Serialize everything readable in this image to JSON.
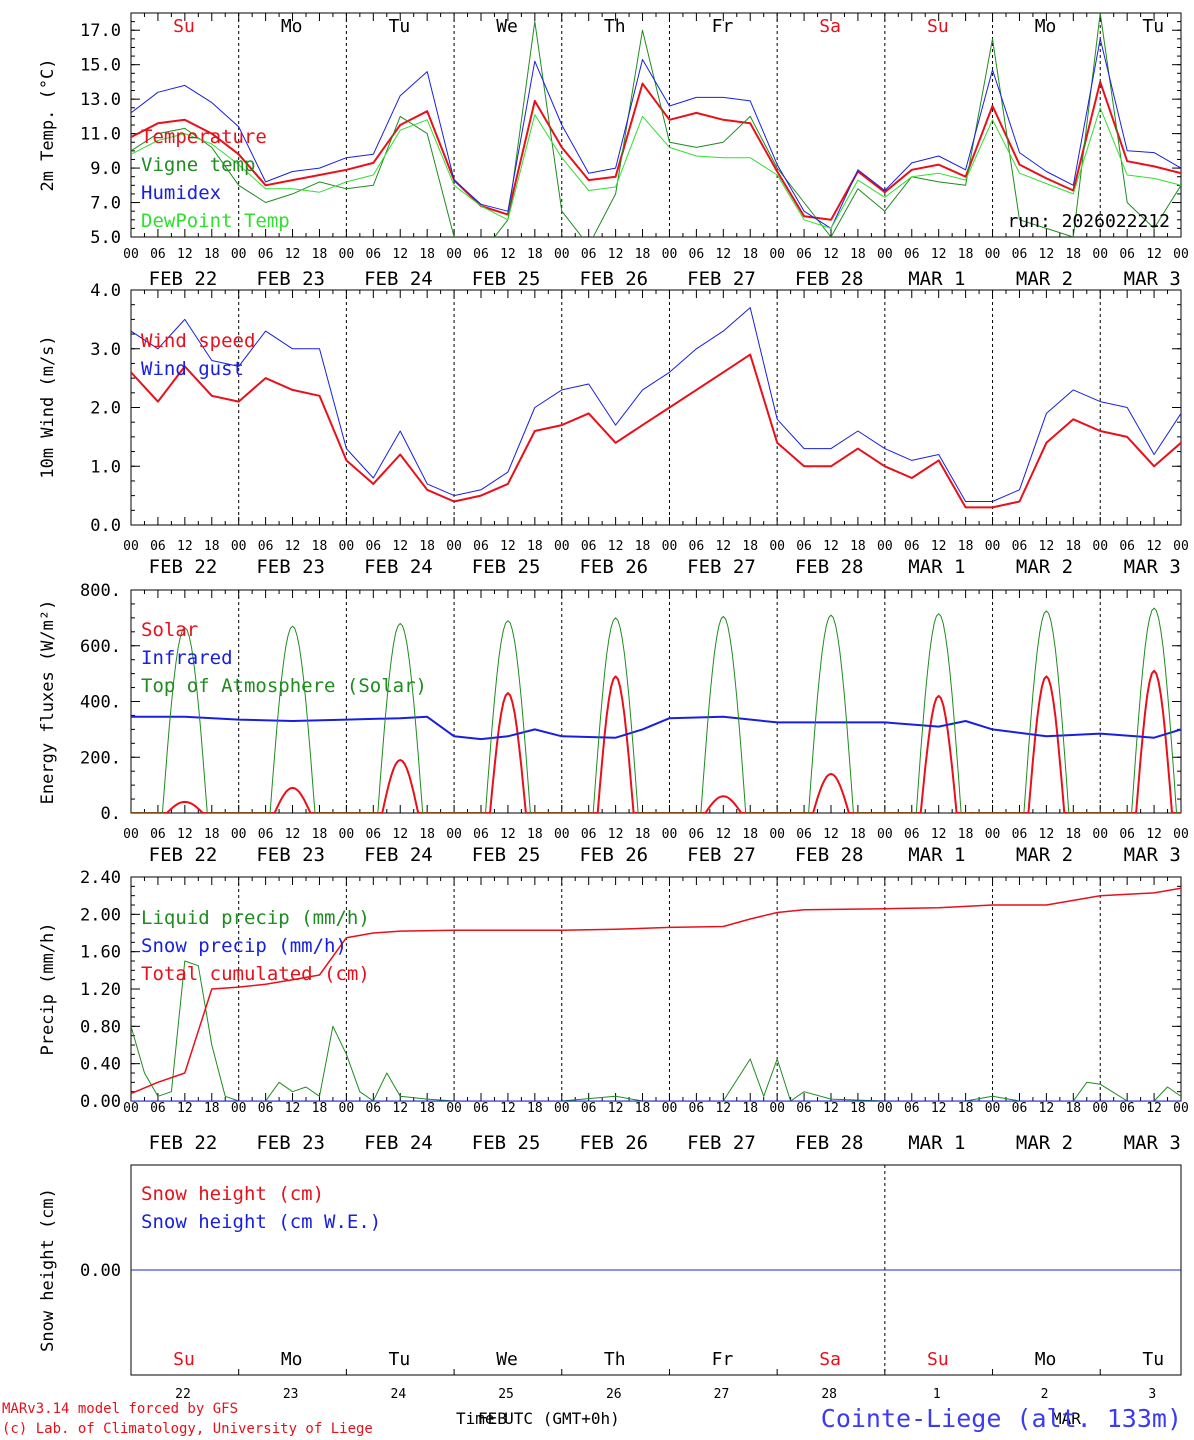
{
  "colors": {
    "red": "#e8101a",
    "green": "#1e8c1e",
    "blue": "#1820e0",
    "lightgreen": "#30e030",
    "black": "#000000"
  },
  "days": {
    "weekdays": [
      "Su",
      "Mo",
      "Tu",
      "We",
      "Th",
      "Fr",
      "Sa",
      "Su",
      "Mo",
      "Tu"
    ],
    "weekday_colors": [
      "red",
      "black",
      "black",
      "black",
      "black",
      "black",
      "red",
      "red",
      "black",
      "black"
    ],
    "date_labels": [
      "FEB 22",
      "FEB 23",
      "FEB 24",
      "FEB 25",
      "FEB 26",
      "FEB 27",
      "FEB 28",
      "MAR  1",
      "MAR  2",
      "MAR  3"
    ],
    "hour_ticks": [
      "00",
      "06",
      "12",
      "18"
    ],
    "last_hour": "00",
    "day_numbers": [
      "22",
      "23",
      "24",
      "25",
      "26",
      "27",
      "28",
      "1",
      "2",
      "3"
    ]
  },
  "footer": {
    "model": "MARv3.14 model forced by GFS",
    "lab": "(c) Lab. of Climatology, University of Liege",
    "time_label": "Time UTC (GMT+0h)",
    "month_feb": "FEB",
    "month_mar": "MAR",
    "station": "Cointe-Liege (alt. 133m)"
  },
  "chart_data": [
    {
      "type": "line",
      "title": "",
      "ylabel": "2m Temp. (°C)",
      "ylim": [
        5.0,
        18.0
      ],
      "yticks": [
        "5.0",
        "7.0",
        "9.0",
        "11.0",
        "13.0",
        "15.0",
        "17.0"
      ],
      "x_unit": "hours since FEB 22 00 UTC",
      "annotation": "run: 2026022212",
      "series": [
        {
          "name": "Temperature",
          "color": "red",
          "width": 2,
          "x": [
            0,
            6,
            12,
            18,
            24,
            30,
            36,
            42,
            48,
            54,
            60,
            66,
            72,
            78,
            84,
            90,
            96,
            102,
            108,
            114,
            120,
            126,
            132,
            138,
            144,
            150,
            156,
            162,
            168,
            174,
            180,
            186,
            192,
            198,
            204,
            210,
            216,
            222,
            228,
            234
          ],
          "values": [
            10.8,
            11.6,
            11.8,
            11.0,
            9.8,
            8.0,
            8.3,
            8.6,
            8.9,
            9.3,
            11.5,
            12.3,
            8.3,
            6.8,
            6.3,
            12.9,
            10.2,
            8.3,
            8.5,
            13.9,
            11.8,
            12.2,
            11.8,
            11.6,
            8.8,
            6.2,
            6.0,
            8.8,
            7.6,
            8.9,
            9.2,
            8.5,
            12.6,
            9.2,
            8.4,
            7.7,
            14.0,
            9.4,
            9.1,
            8.7
          ]
        },
        {
          "name": "Vigne temp",
          "color": "green",
          "width": 1,
          "x": [
            0,
            6,
            12,
            18,
            24,
            30,
            36,
            42,
            48,
            54,
            60,
            66,
            72,
            78,
            84,
            90,
            96,
            102,
            108,
            114,
            120,
            126,
            132,
            138,
            144,
            150,
            156,
            162,
            168,
            174,
            180,
            186,
            192,
            198,
            204,
            210,
            216,
            222,
            228,
            234
          ],
          "values": [
            10.0,
            11.0,
            11.3,
            10.2,
            8.0,
            7.0,
            7.5,
            8.2,
            7.8,
            8.0,
            12.0,
            11.0,
            5.0,
            4.0,
            6.0,
            17.5,
            6.5,
            4.5,
            7.5,
            17.0,
            10.5,
            10.2,
            10.5,
            12.0,
            9.0,
            7.0,
            5.0,
            7.8,
            6.5,
            8.5,
            8.2,
            8.0,
            16.5,
            6.0,
            5.5,
            5.0,
            18.0,
            7.0,
            5.5,
            8.0
          ]
        },
        {
          "name": "Humidex",
          "color": "blue",
          "width": 1,
          "x": [
            0,
            6,
            12,
            18,
            24,
            30,
            36,
            42,
            48,
            54,
            60,
            66,
            72,
            78,
            84,
            90,
            96,
            102,
            108,
            114,
            120,
            126,
            132,
            138,
            144,
            150,
            156,
            162,
            168,
            174,
            180,
            186,
            192,
            198,
            204,
            210,
            216,
            222,
            228,
            234
          ],
          "values": [
            12.2,
            13.4,
            13.8,
            12.8,
            11.4,
            8.2,
            8.8,
            9.0,
            9.6,
            9.8,
            13.2,
            14.6,
            8.3,
            6.9,
            6.5,
            15.2,
            11.5,
            8.7,
            9.0,
            15.3,
            12.6,
            13.1,
            13.1,
            12.9,
            9.2,
            6.5,
            5.5,
            8.9,
            7.7,
            9.3,
            9.7,
            8.9,
            14.7,
            9.9,
            8.8,
            8.0,
            16.5,
            10.0,
            9.9,
            9.0
          ]
        },
        {
          "name": "DewPoint Temp",
          "color": "lightgreen",
          "width": 1,
          "x": [
            0,
            6,
            12,
            18,
            24,
            30,
            36,
            42,
            48,
            54,
            60,
            66,
            72,
            78,
            84,
            90,
            96,
            102,
            108,
            114,
            120,
            126,
            132,
            138,
            144,
            150,
            156,
            162,
            168,
            174,
            180,
            186,
            192,
            198,
            204,
            210,
            216,
            222,
            228,
            234
          ],
          "values": [
            9.8,
            10.6,
            11.0,
            10.4,
            9.2,
            7.8,
            7.8,
            7.6,
            8.2,
            8.6,
            11.2,
            11.8,
            8.0,
            6.8,
            6.0,
            12.1,
            9.6,
            7.7,
            7.9,
            12.0,
            10.2,
            9.7,
            9.6,
            9.6,
            8.6,
            6.0,
            5.5,
            8.3,
            7.3,
            8.5,
            8.7,
            8.3,
            11.8,
            8.7,
            8.1,
            7.5,
            12.5,
            8.6,
            8.4,
            8.0
          ]
        }
      ]
    },
    {
      "type": "line",
      "title": "",
      "ylabel": "10m Wind (m/s)",
      "ylim": [
        0.0,
        4.0
      ],
      "yticks": [
        "0.0",
        "1.0",
        "2.0",
        "3.0",
        "4.0"
      ],
      "x_unit": "hours since FEB 22 00 UTC",
      "series": [
        {
          "name": "Wind speed",
          "color": "red",
          "width": 2,
          "x": [
            0,
            6,
            12,
            18,
            24,
            30,
            36,
            42,
            48,
            54,
            60,
            66,
            72,
            78,
            84,
            90,
            96,
            102,
            108,
            114,
            120,
            126,
            132,
            138,
            144,
            150,
            156,
            162,
            168,
            174,
            180,
            186,
            192,
            198,
            204,
            210,
            216,
            222,
            228,
            234
          ],
          "values": [
            2.6,
            2.1,
            2.7,
            2.2,
            2.1,
            2.5,
            2.3,
            2.2,
            1.1,
            0.7,
            1.2,
            0.6,
            0.4,
            0.5,
            0.7,
            1.6,
            1.7,
            1.9,
            1.4,
            1.7,
            2.0,
            2.3,
            2.6,
            2.9,
            1.4,
            1.0,
            1.0,
            1.3,
            1.0,
            0.8,
            1.1,
            0.3,
            0.3,
            0.4,
            1.4,
            1.8,
            1.6,
            1.5,
            1.0,
            1.4
          ]
        },
        {
          "name": "Wind gust",
          "color": "blue",
          "width": 1,
          "x": [
            0,
            6,
            12,
            18,
            24,
            30,
            36,
            42,
            48,
            54,
            60,
            66,
            72,
            78,
            84,
            90,
            96,
            102,
            108,
            114,
            120,
            126,
            132,
            138,
            144,
            150,
            156,
            162,
            168,
            174,
            180,
            186,
            192,
            198,
            204,
            210,
            216,
            222,
            228,
            234
          ],
          "values": [
            3.3,
            3.0,
            3.5,
            2.8,
            2.7,
            3.3,
            3.0,
            3.0,
            1.3,
            0.8,
            1.6,
            0.7,
            0.5,
            0.6,
            0.9,
            2.0,
            2.3,
            2.4,
            1.7,
            2.3,
            2.6,
            3.0,
            3.3,
            3.7,
            1.8,
            1.3,
            1.3,
            1.6,
            1.3,
            1.1,
            1.2,
            0.4,
            0.4,
            0.6,
            1.9,
            2.3,
            2.1,
            2.0,
            1.2,
            1.9
          ]
        }
      ]
    },
    {
      "type": "line",
      "title": "",
      "ylabel": "Energy fluxes (W/m²)",
      "ylim": [
        0,
        800
      ],
      "yticks": [
        "0.",
        "200.",
        "400.",
        "600.",
        "800."
      ],
      "x_unit": "hours since FEB 22 00 UTC",
      "series": [
        {
          "name": "Solar",
          "color": "red",
          "width": 2,
          "peaks": [
            40,
            90,
            190,
            430,
            490,
            60,
            140,
            420,
            490,
            510
          ]
        },
        {
          "name": "Infrared",
          "color": "blue",
          "width": 2,
          "x": [
            0,
            12,
            24,
            36,
            48,
            60,
            66,
            72,
            78,
            84,
            90,
            96,
            108,
            114,
            120,
            132,
            144,
            156,
            168,
            180,
            186,
            192,
            204,
            216,
            228,
            234
          ],
          "values": [
            345,
            345,
            335,
            330,
            335,
            340,
            345,
            275,
            265,
            275,
            300,
            275,
            270,
            300,
            340,
            345,
            325,
            325,
            325,
            310,
            330,
            300,
            275,
            285,
            270,
            300
          ]
        },
        {
          "name": "Top of Atmosphere (Solar)",
          "color": "green",
          "width": 1,
          "peaks": [
            665,
            670,
            680,
            690,
            700,
            705,
            710,
            715,
            725,
            735
          ]
        }
      ]
    },
    {
      "type": "line",
      "title": "",
      "ylabel": "Precip (mm/h)",
      "ylim": [
        0.0,
        2.4
      ],
      "yticks": [
        "0.00",
        "0.40",
        "0.80",
        "1.20",
        "1.60",
        "2.00",
        "2.40"
      ],
      "x_unit": "hours since FEB 22 00 UTC",
      "series": [
        {
          "name": "Liquid precip (mm/h)",
          "color": "green",
          "width": 1,
          "x": [
            0,
            3,
            6,
            9,
            12,
            15,
            18,
            21,
            24,
            30,
            33,
            36,
            39,
            42,
            45,
            48,
            51,
            54,
            57,
            60,
            66,
            72,
            96,
            108,
            114,
            120,
            132,
            138,
            141,
            144,
            147,
            150,
            156,
            168,
            186,
            192,
            198,
            204,
            210,
            213,
            216,
            222,
            228,
            231,
            234
          ],
          "values": [
            0.8,
            0.3,
            0.05,
            0.1,
            1.5,
            1.45,
            0.6,
            0.05,
            0.0,
            0.0,
            0.2,
            0.1,
            0.15,
            0.05,
            0.8,
            0.5,
            0.1,
            0.0,
            0.3,
            0.05,
            0.02,
            0.0,
            0.0,
            0.05,
            0.0,
            0.0,
            0.0,
            0.45,
            0.05,
            0.45,
            0.0,
            0.1,
            0.02,
            0.0,
            0.0,
            0.05,
            0.0,
            0.0,
            0.0,
            0.2,
            0.18,
            0.0,
            0.0,
            0.15,
            0.05
          ]
        },
        {
          "name": "Snow precip (mm/h)",
          "color": "blue",
          "width": 1,
          "x": [
            0,
            234
          ],
          "values": [
            0.0,
            0.0
          ]
        },
        {
          "name": "Total cumulated (cm)",
          "color": "red",
          "width": 1.5,
          "x": [
            0,
            6,
            12,
            18,
            24,
            30,
            36,
            42,
            48,
            54,
            60,
            72,
            96,
            108,
            120,
            132,
            138,
            144,
            150,
            168,
            180,
            192,
            204,
            216,
            228,
            234
          ],
          "values": [
            0.08,
            0.2,
            0.3,
            1.2,
            1.22,
            1.25,
            1.3,
            1.35,
            1.75,
            1.8,
            1.82,
            1.83,
            1.83,
            1.84,
            1.86,
            1.87,
            1.95,
            2.02,
            2.05,
            2.06,
            2.07,
            2.1,
            2.1,
            2.2,
            2.23,
            2.28
          ]
        }
      ]
    },
    {
      "type": "line",
      "title": "",
      "ylabel": "Snow height (cm)",
      "ylim": [
        -1,
        1
      ],
      "yticks": [
        "0.00"
      ],
      "x_unit": "hours since FEB 22 00 UTC",
      "series": [
        {
          "name": "Snow height (cm)",
          "color": "red",
          "width": 1,
          "x": [
            0,
            234
          ],
          "values": [
            0.0,
            0.0
          ]
        },
        {
          "name": "Snow height (cm W.E.)",
          "color": "blue",
          "width": 1,
          "x": [
            0,
            234
          ],
          "values": [
            0.0,
            0.0
          ]
        }
      ]
    }
  ]
}
